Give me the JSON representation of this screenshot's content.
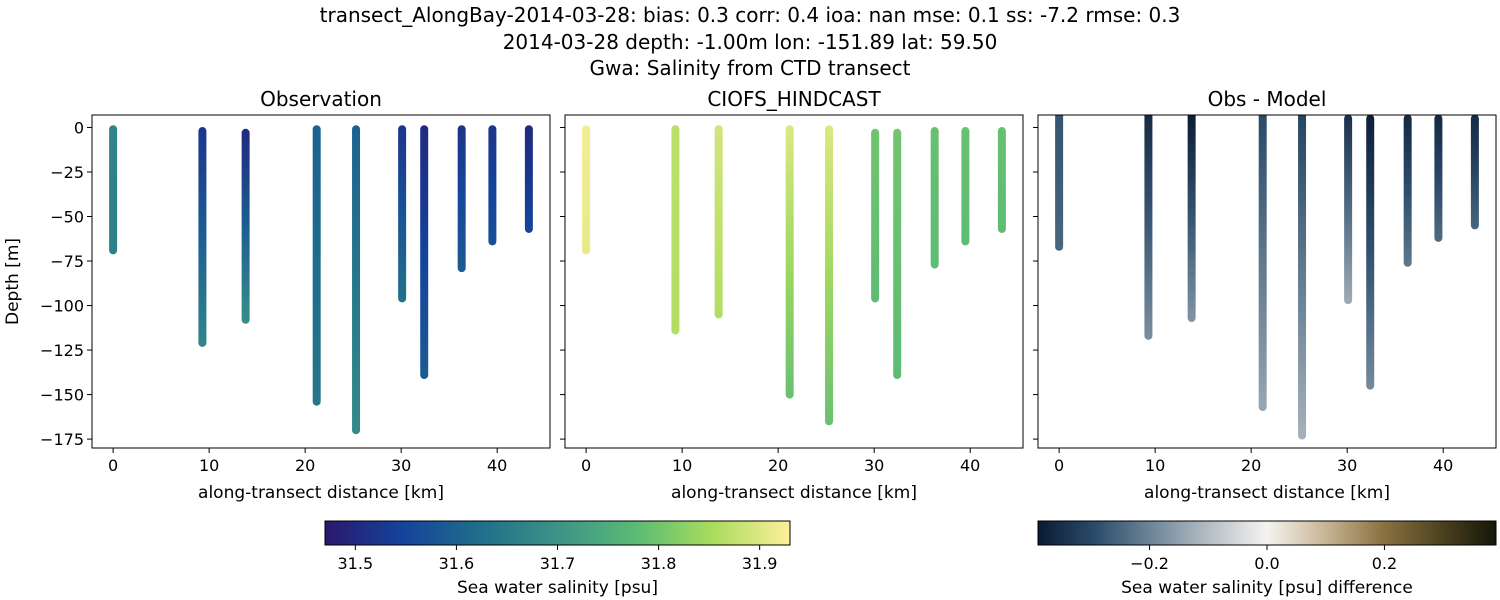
{
  "figure": {
    "title_lines": [
      "transect_AlongBay-2014-03-28: bias: 0.3  corr: 0.4  ioa: nan  mse: 0.1  ss: -7.2  rmse: 0.3",
      "2014-03-28 depth: -1.00m lon: -151.89 lat: 59.50",
      "Gwa: Salinity from CTD transect"
    ]
  },
  "chart_data": [
    {
      "type": "scatter",
      "title": "Observation",
      "xlabel": "along-transect distance [km]",
      "ylabel": "Depth [m]",
      "xlim": [
        -2.2,
        45.5
      ],
      "ylim": [
        -180,
        7
      ],
      "xticks": [
        0,
        10,
        20,
        30,
        40
      ],
      "xtick_labels": [
        "0",
        "10",
        "20",
        "30",
        "40"
      ],
      "yticks": [
        0,
        -25,
        -50,
        -75,
        -100,
        -125,
        -150,
        -175
      ],
      "ytick_labels": [
        "0",
        "−25",
        "−50",
        "−75",
        "−100",
        "−125",
        "−150",
        "−175"
      ],
      "colorbar": "salinity",
      "casts": [
        {
          "x": 0.0,
          "top": -1,
          "bottom": -69,
          "top_value": 31.67,
          "bottom_value": 31.66
        },
        {
          "x": 9.3,
          "top": -2,
          "bottom": -121,
          "top_value": 31.52,
          "bottom_value": 31.67
        },
        {
          "x": 13.8,
          "top": -3,
          "bottom": -108,
          "top_value": 31.5,
          "bottom_value": 31.69
        },
        {
          "x": 21.2,
          "top": -1,
          "bottom": -154,
          "top_value": 31.6,
          "bottom_value": 31.64
        },
        {
          "x": 25.3,
          "top": -1,
          "bottom": -170,
          "top_value": 31.6,
          "bottom_value": 31.68
        },
        {
          "x": 30.1,
          "top": -1,
          "bottom": -96,
          "top_value": 31.52,
          "bottom_value": 31.63
        },
        {
          "x": 32.4,
          "top": -1,
          "bottom": -139,
          "top_value": 31.5,
          "bottom_value": 31.59
        },
        {
          "x": 36.3,
          "top": -1,
          "bottom": -79,
          "top_value": 31.52,
          "bottom_value": 31.59
        },
        {
          "x": 39.5,
          "top": -1,
          "bottom": -64,
          "top_value": 31.52,
          "bottom_value": 31.57
        },
        {
          "x": 43.3,
          "top": -1,
          "bottom": -57,
          "top_value": 31.5,
          "bottom_value": 31.55
        }
      ]
    },
    {
      "type": "scatter",
      "title": "CIOFS_HINDCAST",
      "xlabel": "along-transect distance [km]",
      "ylabel": "",
      "xlim": [
        -2.2,
        45.5
      ],
      "ylim": [
        -180,
        7
      ],
      "xticks": [
        0,
        10,
        20,
        30,
        40
      ],
      "xtick_labels": [
        "0",
        "10",
        "20",
        "30",
        "40"
      ],
      "yticks": [
        0,
        -25,
        -50,
        -75,
        -100,
        -125,
        -150,
        -175
      ],
      "ytick_labels": [],
      "colorbar": "salinity",
      "casts": [
        {
          "x": 0.0,
          "top": -1,
          "bottom": -69,
          "top_value": 31.92,
          "bottom_value": 31.91
        },
        {
          "x": 9.3,
          "top": -1,
          "bottom": -114,
          "top_value": 31.87,
          "bottom_value": 31.86
        },
        {
          "x": 13.8,
          "top": -1,
          "bottom": -105,
          "top_value": 31.89,
          "bottom_value": 31.86
        },
        {
          "x": 21.2,
          "top": -1,
          "bottom": -150,
          "top_value": 31.9,
          "bottom_value": 31.79
        },
        {
          "x": 25.3,
          "top": -1,
          "bottom": -165,
          "top_value": 31.9,
          "bottom_value": 31.79
        },
        {
          "x": 30.1,
          "top": -3,
          "bottom": -96,
          "top_value": 31.8,
          "bottom_value": 31.78
        },
        {
          "x": 32.4,
          "top": -3,
          "bottom": -139,
          "top_value": 31.8,
          "bottom_value": 31.78
        },
        {
          "x": 36.3,
          "top": -2,
          "bottom": -77,
          "top_value": 31.79,
          "bottom_value": 31.78
        },
        {
          "x": 39.5,
          "top": -2,
          "bottom": -64,
          "top_value": 31.79,
          "bottom_value": 31.78
        },
        {
          "x": 43.3,
          "top": -2,
          "bottom": -57,
          "top_value": 31.79,
          "bottom_value": 31.78
        }
      ]
    },
    {
      "type": "scatter",
      "title": "Obs - Model",
      "xlabel": "along-transect distance [km]",
      "ylabel": "",
      "xlim": [
        -2.2,
        45.5
      ],
      "ylim": [
        -180,
        7
      ],
      "xticks": [
        0,
        10,
        20,
        30,
        40
      ],
      "xtick_labels": [
        "0",
        "10",
        "20",
        "30",
        "40"
      ],
      "yticks": [
        0,
        -25,
        -50,
        -75,
        -100,
        -125,
        -150,
        -175
      ],
      "ytick_labels": [],
      "colorbar": "difference",
      "casts": [
        {
          "x": 0.0,
          "top": 7,
          "bottom": -67,
          "top_value": -0.28,
          "bottom_value": -0.25
        },
        {
          "x": 9.3,
          "top": 7,
          "bottom": -117,
          "top_value": -0.36,
          "bottom_value": -0.18
        },
        {
          "x": 13.8,
          "top": 7,
          "bottom": -107,
          "top_value": -0.39,
          "bottom_value": -0.17
        },
        {
          "x": 21.2,
          "top": 7,
          "bottom": -157,
          "top_value": -0.3,
          "bottom_value": -0.14
        },
        {
          "x": 25.3,
          "top": 7,
          "bottom": -173,
          "top_value": -0.31,
          "bottom_value": -0.12
        },
        {
          "x": 30.1,
          "top": 5,
          "bottom": -97,
          "top_value": -0.35,
          "bottom_value": -0.13
        },
        {
          "x": 32.4,
          "top": 5,
          "bottom": -145,
          "top_value": -0.38,
          "bottom_value": -0.19
        },
        {
          "x": 36.3,
          "top": 5,
          "bottom": -76,
          "top_value": -0.36,
          "bottom_value": -0.22
        },
        {
          "x": 39.5,
          "top": 5,
          "bottom": -62,
          "top_value": -0.36,
          "bottom_value": -0.24
        },
        {
          "x": 43.3,
          "top": 5,
          "bottom": -55,
          "top_value": -0.36,
          "bottom_value": -0.25
        }
      ]
    }
  ],
  "colorbars": {
    "salinity": {
      "label": "Sea water salinity [psu]",
      "range": [
        31.47,
        31.93
      ],
      "ticks": [
        31.5,
        31.6,
        31.7,
        31.8,
        31.9
      ],
      "tick_labels": [
        "31.5",
        "31.6",
        "31.7",
        "31.8",
        "31.9"
      ],
      "colormap": "haline",
      "colors": [
        "#2a186c",
        "#14439c",
        "#206e8b",
        "#3c9387",
        "#5aba75",
        "#a9dc5d",
        "#fdef9a"
      ]
    },
    "difference": {
      "label": "Sea water salinity [psu] difference",
      "range": [
        -0.39,
        0.39
      ],
      "ticks": [
        -0.2,
        0.0,
        0.2
      ],
      "tick_labels": [
        "−0.2",
        "0.0",
        "0.2"
      ],
      "colormap": "diff",
      "colors": [
        "#0a1a33",
        "#2b4c6a",
        "#6f8799",
        "#b6bec6",
        "#f5f3f0",
        "#c9b697",
        "#8c7343",
        "#4f4420",
        "#141608"
      ]
    }
  }
}
